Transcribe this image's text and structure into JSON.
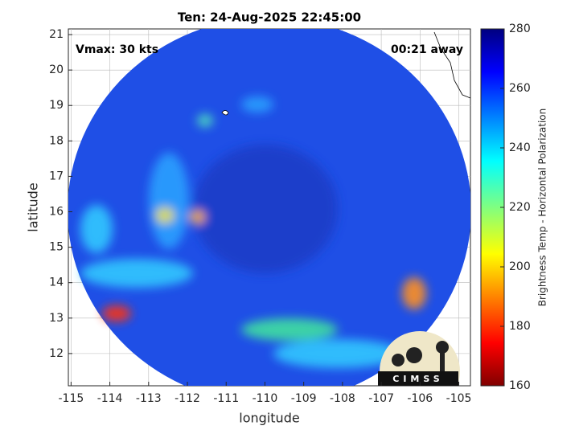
{
  "chart_data": {
    "type": "map",
    "title": "Ten: 24-Aug-2025 22:45:00",
    "annotations": [
      "Vmax: 30 kts",
      "00:21 away"
    ],
    "x_label": "longitude",
    "y_label": "latitude",
    "xlim": [
      -115.07,
      -104.7
    ],
    "ylim": [
      11.09,
      21.16
    ],
    "xticks": [
      -115,
      -114,
      -113,
      -112,
      -111,
      -110,
      -109,
      -108,
      -107,
      -106,
      -105
    ],
    "yticks": [
      12,
      13,
      14,
      15,
      16,
      17,
      18,
      19,
      20,
      21
    ],
    "grid": true,
    "colorbar": {
      "label": "Brightness Temp - Horizontal Polarization",
      "lim": [
        160,
        280
      ],
      "ticks": [
        160,
        180,
        200,
        220,
        240,
        260,
        280
      ]
    },
    "logo": "CIMSS"
  }
}
